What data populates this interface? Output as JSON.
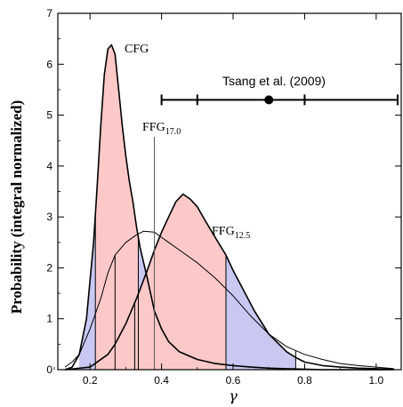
{
  "chart_data": {
    "type": "area",
    "title": "",
    "xlabel": "γ",
    "ylabel": "Probability (integral normalized)",
    "xlim": [
      0.11,
      1.07
    ],
    "ylim": [
      0,
      7
    ],
    "xticks": [
      "0.2",
      "0.4",
      "0.6",
      "0.8",
      "1.0"
    ],
    "yticks": [
      "0",
      "1",
      "2",
      "3",
      "4",
      "5",
      "6",
      "7"
    ],
    "fill_colors": {
      "credible_interval": "#fcc8c8",
      "tails": "#c8c8f2"
    },
    "series": [
      {
        "name": "CFG",
        "name_sub": "",
        "x": [
          0.13,
          0.15,
          0.17,
          0.19,
          0.21,
          0.22,
          0.23,
          0.24,
          0.25,
          0.26,
          0.27,
          0.28,
          0.29,
          0.3,
          0.31,
          0.32,
          0.33,
          0.34,
          0.36,
          0.38,
          0.4,
          0.42,
          0.45,
          0.5,
          0.55,
          0.6,
          0.65,
          0.7,
          0.75,
          0.8,
          0.85,
          0.9,
          0.95,
          1.0,
          1.05
        ],
        "y": [
          0.0,
          0.05,
          0.3,
          1.0,
          2.5,
          3.6,
          4.8,
          5.8,
          6.3,
          6.38,
          6.2,
          5.5,
          4.8,
          4.2,
          3.7,
          3.3,
          2.8,
          2.4,
          1.8,
          1.15,
          0.8,
          0.55,
          0.35,
          0.2,
          0.12,
          0.08,
          0.05,
          0.03,
          0.02,
          0.01,
          0.0,
          0.0,
          0.0,
          0.0,
          0.0
        ],
        "interval": [
          0.215,
          0.335
        ]
      },
      {
        "name": "FFG",
        "name_sub": "17.0",
        "x": [
          0.13,
          0.15,
          0.17,
          0.2,
          0.23,
          0.25,
          0.27,
          0.3,
          0.33,
          0.35,
          0.38,
          0.4,
          0.42,
          0.45,
          0.5,
          0.55,
          0.6,
          0.65,
          0.7,
          0.75,
          0.8,
          0.85,
          0.9,
          0.95,
          1.0,
          1.05
        ],
        "y": [
          0.05,
          0.15,
          0.3,
          0.8,
          1.4,
          1.9,
          2.25,
          2.5,
          2.65,
          2.72,
          2.7,
          2.6,
          2.5,
          2.35,
          2.1,
          1.8,
          1.45,
          1.05,
          0.7,
          0.45,
          0.3,
          0.2,
          0.12,
          0.08,
          0.05,
          0.02
        ],
        "interval": [
          0.27,
          0.775
        ],
        "marker": 0.38
      },
      {
        "name": "FFG",
        "name_sub": "12.5",
        "x": [
          0.13,
          0.2,
          0.25,
          0.27,
          0.3,
          0.33,
          0.36,
          0.38,
          0.4,
          0.42,
          0.44,
          0.46,
          0.48,
          0.5,
          0.52,
          0.55,
          0.58,
          0.6,
          0.63,
          0.66,
          0.7,
          0.75,
          0.78,
          0.8,
          0.85,
          0.9,
          0.95,
          1.0,
          1.05
        ],
        "y": [
          0.0,
          0.05,
          0.3,
          0.5,
          0.9,
          1.4,
          1.95,
          2.35,
          2.7,
          3.0,
          3.3,
          3.45,
          3.35,
          3.2,
          2.95,
          2.6,
          2.25,
          1.95,
          1.55,
          1.15,
          0.7,
          0.35,
          0.22,
          0.15,
          0.08,
          0.05,
          0.03,
          0.02,
          0.01
        ],
        "interval": [
          0.325,
          0.58
        ]
      }
    ],
    "annotation": {
      "label": "Tsang et al. (2009)",
      "y": 5.3,
      "x_low": 0.4,
      "x_high": 1.06,
      "x_center": 0.7,
      "x_inner": [
        0.5,
        0.8
      ]
    }
  }
}
